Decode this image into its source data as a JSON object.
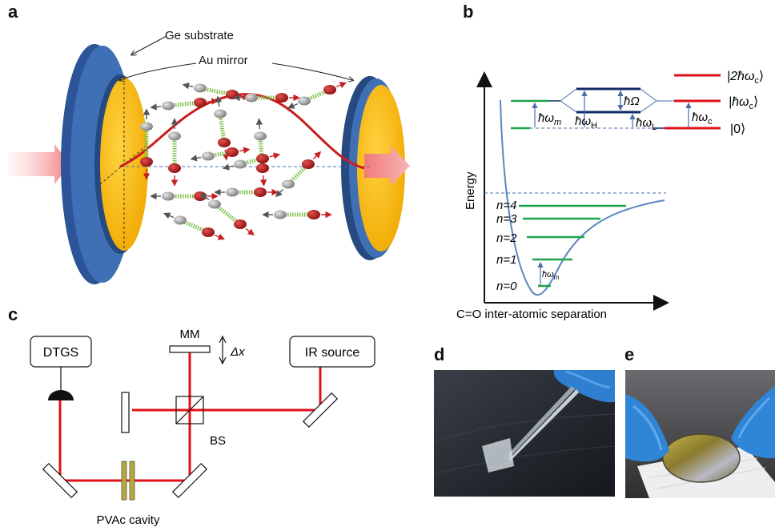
{
  "panels": {
    "a": "a",
    "b": "b",
    "c": "c",
    "d": "d",
    "e": "e"
  },
  "panel_a": {
    "substrate_label": "Ge substrate",
    "mirror_label": "Au mirror",
    "colors": {
      "substrate": "#3f6fb5",
      "mirror": "#f5b400",
      "field": "#c81e1e",
      "beam": "#f08a8a",
      "molecule_red": "#b81c1c",
      "molecule_grey": "#9a9a9a",
      "spring": "#7cc24a"
    }
  },
  "panel_b": {
    "y_axis_label": "Energy",
    "x_axis_label": "C=O inter-atomic separation",
    "levels": [
      "n=0",
      "n=1",
      "n=2",
      "n=3",
      "n=4"
    ],
    "vib_quantum": "ħω",
    "vib_quantum_sub": "m",
    "hw_m": "ħω",
    "hw_m_sub": "m",
    "hw_H": "ħω",
    "hw_H_sub": "H",
    "hw_L": "ħω",
    "hw_L_sub": "L",
    "rabi": "ħΩ",
    "hw_c": "ħω",
    "hw_c_sub": "c",
    "ket_2c": "|2ħω",
    "ket_2c_sub": "c",
    "ket_2c_close": "⟩",
    "ket_c": "|ħω",
    "ket_c_sub": "c",
    "ket_c_close": "⟩",
    "ket_0": "|0⟩",
    "colors": {
      "curve": "#5a86c0",
      "vib_level": "#1fa34a",
      "photon_level": "#e0101a",
      "polariton": "#0f2c66",
      "arrow": "#4a6fa8"
    }
  },
  "panel_c": {
    "detector": "DTGS",
    "source": "IR source",
    "moving_mirror": "MM",
    "displacement": "Δx",
    "beamsplitter": "BS",
    "cavity": "PVAc cavity",
    "colors": {
      "beam": "#e0101a",
      "cavity": "#b5a93a"
    }
  }
}
